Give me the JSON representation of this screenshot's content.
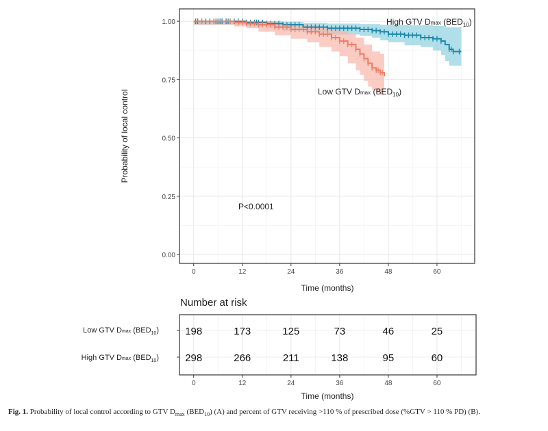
{
  "chart_data": {
    "type": "line",
    "subtype": "kaplan-meier",
    "ylabel": "Probability of local control",
    "xlabel": "Time (months)",
    "xlim": [
      -3.5,
      69.3
    ],
    "ylim": [
      -0.038,
      1.053
    ],
    "xticks": [
      "0",
      "12",
      "24",
      "36",
      "48",
      "60"
    ],
    "xtick_values": [
      0,
      12,
      24,
      36,
      48,
      60
    ],
    "yticks": [
      "0.00",
      "0.25",
      "0.50",
      "0.75",
      "1.00"
    ],
    "ytick_values": [
      0,
      0.25,
      0.5,
      0.75,
      1.0
    ],
    "grid": true,
    "annotation": "P<0.0001",
    "series": [
      {
        "name": {
          "prefix": "High GTV D",
          "sub1": "max",
          "mid": " (BED",
          "sub2": "10",
          "suffix": ")"
        },
        "color": "#1a86a8",
        "band_color": "#8fd0e0",
        "steps": [
          [
            0,
            1.0
          ],
          [
            13,
            0.995
          ],
          [
            18,
            0.99
          ],
          [
            22,
            0.985
          ],
          [
            27,
            0.975
          ],
          [
            33,
            0.97
          ],
          [
            41,
            0.965
          ],
          [
            44,
            0.96
          ],
          [
            46,
            0.955
          ],
          [
            48,
            0.945
          ],
          [
            52,
            0.94
          ],
          [
            56,
            0.93
          ],
          [
            59,
            0.925
          ],
          [
            61,
            0.915
          ],
          [
            62,
            0.9
          ],
          [
            63,
            0.88
          ],
          [
            64,
            0.87
          ],
          [
            66,
            0.87
          ]
        ],
        "upper": [
          [
            0,
            1.0
          ],
          [
            13,
            1.0
          ],
          [
            22,
            0.998
          ],
          [
            27,
            0.993
          ],
          [
            33,
            0.99
          ],
          [
            41,
            0.988
          ],
          [
            46,
            0.985
          ],
          [
            52,
            0.983
          ],
          [
            59,
            0.98
          ],
          [
            62,
            0.975
          ],
          [
            66,
            0.975
          ]
        ],
        "lower": [
          [
            0,
            1.0
          ],
          [
            13,
            0.985
          ],
          [
            18,
            0.978
          ],
          [
            22,
            0.97
          ],
          [
            27,
            0.96
          ],
          [
            33,
            0.952
          ],
          [
            41,
            0.943
          ],
          [
            44,
            0.937
          ],
          [
            46,
            0.93
          ],
          [
            48,
            0.918
          ],
          [
            52,
            0.91
          ],
          [
            56,
            0.897
          ],
          [
            59,
            0.89
          ],
          [
            61,
            0.875
          ],
          [
            62,
            0.855
          ],
          [
            63,
            0.83
          ],
          [
            64,
            0.81
          ],
          [
            66,
            0.81
          ]
        ],
        "censor": [
          0.5,
          1,
          2,
          3,
          4,
          5,
          5.5,
          6,
          6.5,
          7,
          8,
          8.5,
          9,
          10,
          11,
          12,
          13,
          14,
          15,
          15.5,
          16,
          17,
          18,
          19,
          20,
          21,
          22,
          23,
          24,
          25,
          26,
          27,
          28,
          29,
          30,
          31,
          32,
          33,
          34,
          35,
          36,
          37,
          38,
          39,
          40,
          41,
          42,
          43,
          44,
          45,
          46,
          47,
          48,
          49,
          50,
          51,
          52,
          53,
          54,
          55,
          56,
          57,
          58,
          59,
          60,
          61,
          63,
          63.5,
          64,
          65.5
        ]
      },
      {
        "name": {
          "prefix": "Low GTV D",
          "sub1": "max",
          "mid": " (BED",
          "sub2": "10",
          "suffix": ")"
        },
        "color": "#ef7b64",
        "band_color": "#f8b7aa",
        "steps": [
          [
            0,
            1.0
          ],
          [
            10,
            0.995
          ],
          [
            13,
            0.99
          ],
          [
            16,
            0.985
          ],
          [
            20,
            0.975
          ],
          [
            24,
            0.965
          ],
          [
            28,
            0.955
          ],
          [
            31,
            0.945
          ],
          [
            34,
            0.93
          ],
          [
            36,
            0.915
          ],
          [
            38,
            0.9
          ],
          [
            40,
            0.88
          ],
          [
            41,
            0.86
          ],
          [
            42,
            0.84
          ],
          [
            43,
            0.82
          ],
          [
            44,
            0.8
          ],
          [
            45,
            0.79
          ],
          [
            46,
            0.78
          ],
          [
            47,
            0.765
          ]
        ],
        "upper": [
          [
            0,
            1.0
          ],
          [
            10,
            1.0
          ],
          [
            16,
            0.998
          ],
          [
            20,
            0.993
          ],
          [
            24,
            0.988
          ],
          [
            28,
            0.982
          ],
          [
            31,
            0.975
          ],
          [
            34,
            0.965
          ],
          [
            36,
            0.955
          ],
          [
            38,
            0.945
          ],
          [
            40,
            0.93
          ],
          [
            42,
            0.9
          ],
          [
            44,
            0.87
          ],
          [
            46,
            0.86
          ],
          [
            47,
            0.86
          ]
        ],
        "lower": [
          [
            0,
            1.0
          ],
          [
            10,
            0.985
          ],
          [
            13,
            0.978
          ],
          [
            16,
            0.97
          ],
          [
            20,
            0.955
          ],
          [
            24,
            0.94
          ],
          [
            28,
            0.925
          ],
          [
            31,
            0.91
          ],
          [
            34,
            0.89
          ],
          [
            36,
            0.87
          ],
          [
            38,
            0.85
          ],
          [
            40,
            0.82
          ],
          [
            41,
            0.79
          ],
          [
            42,
            0.77
          ],
          [
            43,
            0.745
          ],
          [
            44,
            0.72
          ],
          [
            45,
            0.705
          ],
          [
            46,
            0.695
          ],
          [
            47,
            0.685
          ]
        ],
        "censor": [
          2,
          5,
          9,
          11,
          12,
          13,
          14,
          15,
          16,
          17,
          18,
          19,
          20,
          21,
          22,
          23,
          24,
          25,
          26,
          27,
          28,
          29,
          30,
          31,
          32,
          33,
          34,
          35,
          36,
          37,
          38,
          39,
          40,
          41,
          42,
          43,
          44,
          45,
          45.5,
          46,
          46.5
        ]
      }
    ],
    "risk_table": {
      "title": "Number at risk",
      "times": [
        "0",
        "12",
        "24",
        "36",
        "48",
        "60"
      ],
      "rows": [
        {
          "label": {
            "prefix": "Low GTV D",
            "sub1": "max",
            "mid": " (BED",
            "sub2": "10",
            "suffix": ")"
          },
          "values": [
            "198",
            "173",
            "125",
            "73",
            "46",
            "25"
          ]
        },
        {
          "label": {
            "prefix": "High GTV D",
            "sub1": "max",
            "mid": " (BED",
            "sub2": "10",
            "suffix": ")"
          },
          "values": [
            "298",
            "266",
            "211",
            "138",
            "95",
            "60"
          ]
        }
      ],
      "xlabel": "Time (months)"
    }
  },
  "caption": {
    "label": "Fig. 1.",
    "text1": " Probability of local control according to GTV D",
    "sub1": "max",
    "text2": " (BED",
    "sub2": "10",
    "text3": ") (A) and percent of GTV receiving >110 % of prescribed dose (%GTV > 110 % PD) (B)."
  }
}
